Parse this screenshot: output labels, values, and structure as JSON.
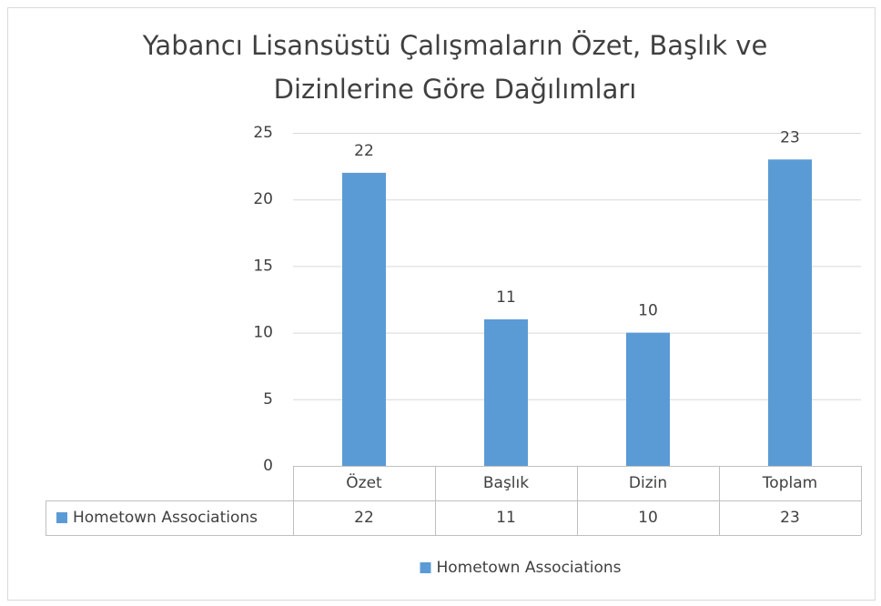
{
  "chart_data": {
    "type": "bar",
    "title": "Yabancı Lisansüstü Çalışmaların Özet, Başlık ve Dizinlerine Göre Dağılımları",
    "categories": [
      "Özet",
      "Başlık",
      "Dizin",
      "Toplam"
    ],
    "series": [
      {
        "name": "Hometown Associations",
        "color": "#5b9bd5",
        "values": [
          22,
          11,
          10,
          23
        ]
      }
    ],
    "ylim": [
      0,
      25
    ],
    "yticks": [
      0,
      5,
      10,
      15,
      20,
      25
    ],
    "grid": true,
    "legend": "bottom",
    "data_table": true
  }
}
